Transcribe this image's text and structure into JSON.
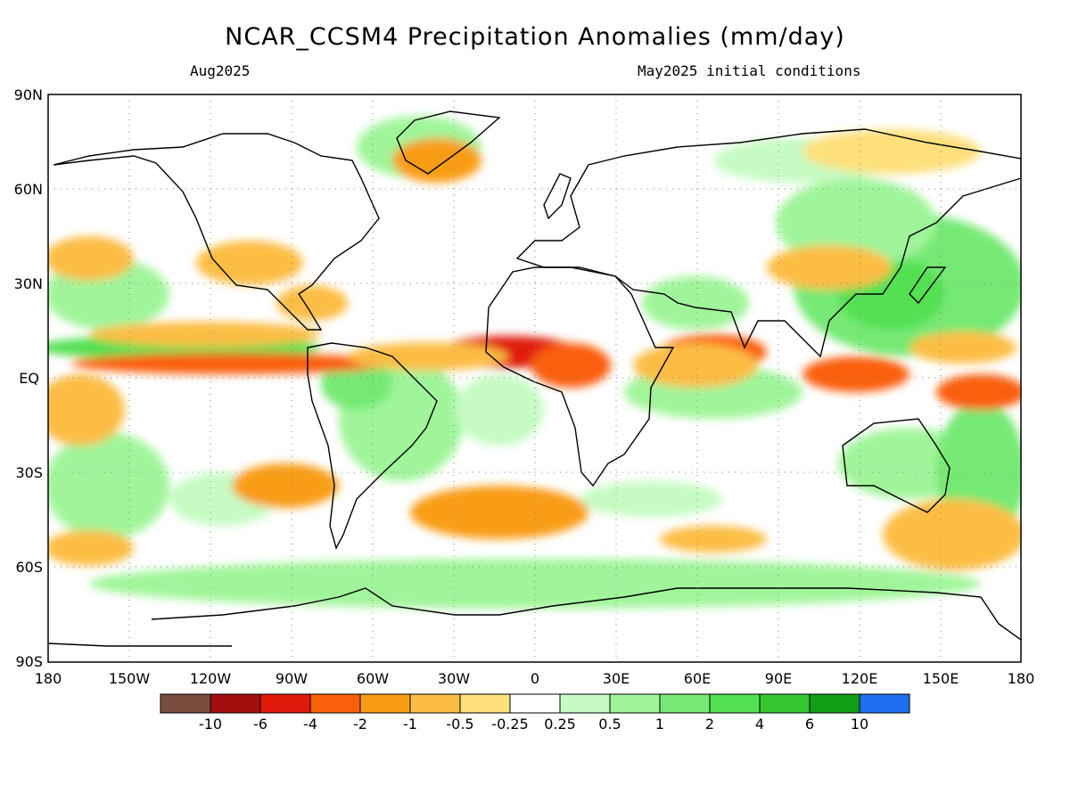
{
  "title": "NCAR_CCSM4 Precipitation Anomalies (mm/day)",
  "subtitle_left": "Aug2025",
  "subtitle_right": "May2025 initial conditions",
  "map": {
    "projection": "equirectangular",
    "lon_range": [
      -180,
      180
    ],
    "lat_range": [
      -90,
      90
    ],
    "grid": "dotted",
    "lat_labels": [
      "90N",
      "60N",
      "30N",
      "EQ",
      "30S",
      "60S",
      "90S"
    ],
    "lon_labels": [
      "180",
      "150W",
      "120W",
      "90W",
      "60W",
      "30W",
      "0",
      "30E",
      "60E",
      "90E",
      "120E",
      "150E",
      "180"
    ]
  },
  "colorbar": {
    "colors": [
      "#7a4e3f",
      "#a30f0f",
      "#e01a0a",
      "#fa5f0a",
      "#f99d14",
      "#fcbd45",
      "#fde07a",
      "#ffffff",
      "#c6fbc3",
      "#a0f59a",
      "#76e975",
      "#52e052",
      "#35c832",
      "#119e17",
      "#1e6ff0"
    ],
    "tick_labels": [
      "-10",
      "-6",
      "-4",
      "-2",
      "-1",
      "-0.5",
      "-0.25",
      "0.25",
      "0.5",
      "1",
      "2",
      "4",
      "6",
      "10"
    ]
  }
}
